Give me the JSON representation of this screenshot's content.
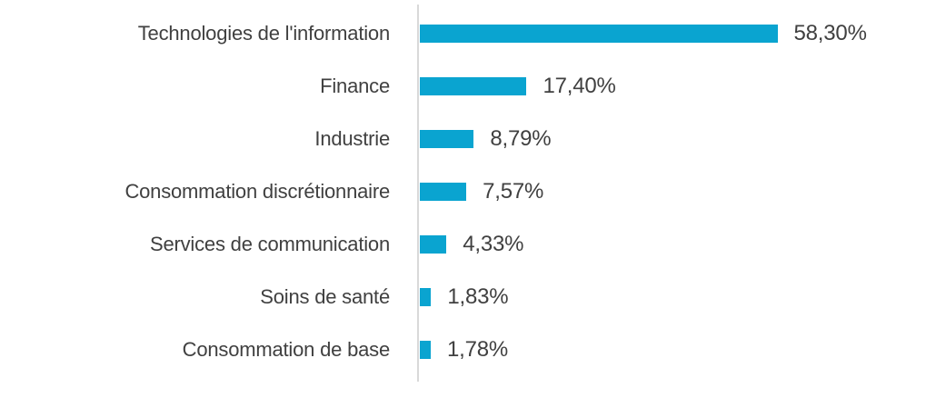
{
  "chart_data": {
    "type": "bar",
    "orientation": "horizontal",
    "title": "",
    "xlabel": "",
    "ylabel": "",
    "categories": [
      "Technologies de l'information",
      "Finance",
      "Industrie",
      "Consommation discrétionnaire",
      "Services de communication",
      "Soins de santé",
      "Consommation de base"
    ],
    "values": [
      58.3,
      17.4,
      8.79,
      7.57,
      4.33,
      1.83,
      1.78
    ],
    "value_labels": [
      "58,30%",
      "17,40%",
      "8,79%",
      "7,57%",
      "4,33%",
      "1,83%",
      "1,78%"
    ],
    "xlim": [
      0,
      60
    ],
    "grid": false,
    "legend": "none",
    "bar_color": "#0aa4d0",
    "axis_line_color": "#d9d9d9",
    "text_color": "#404040"
  }
}
